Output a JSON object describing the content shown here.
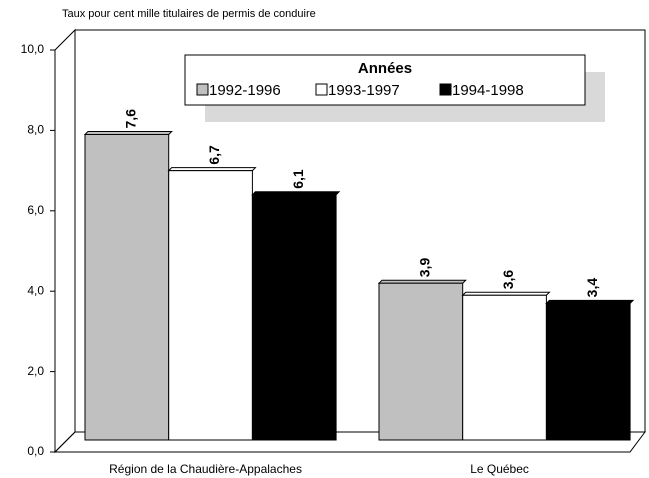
{
  "chart_data": {
    "type": "bar",
    "y_axis_label": "Taux pour cent mille titulaires de permis de conduire",
    "legend_title": "Années",
    "categories": [
      "Région de la Chaudière-Appalaches",
      "Le Québec"
    ],
    "series": [
      {
        "name": "1992-1996",
        "color": "#c0c0c0",
        "values": [
          7.6,
          3.9
        ],
        "value_labels": [
          "7,6",
          "3,9"
        ]
      },
      {
        "name": "1993-1997",
        "color": "#ffffff",
        "values": [
          6.7,
          3.6
        ],
        "value_labels": [
          "6,7",
          "3,6"
        ]
      },
      {
        "name": "1994-1998",
        "color": "#000000",
        "values": [
          6.1,
          3.4
        ],
        "value_labels": [
          "6,1",
          "3,4"
        ]
      }
    ],
    "ylim": [
      0,
      10
    ],
    "yticks": [
      {
        "value": 0,
        "label": "0,0"
      },
      {
        "value": 2,
        "label": "2,0"
      },
      {
        "value": 4,
        "label": "4,0"
      },
      {
        "value": 6,
        "label": "6,0"
      },
      {
        "value": 8,
        "label": "8,0"
      },
      {
        "value": 10,
        "label": "10,0"
      }
    ]
  }
}
